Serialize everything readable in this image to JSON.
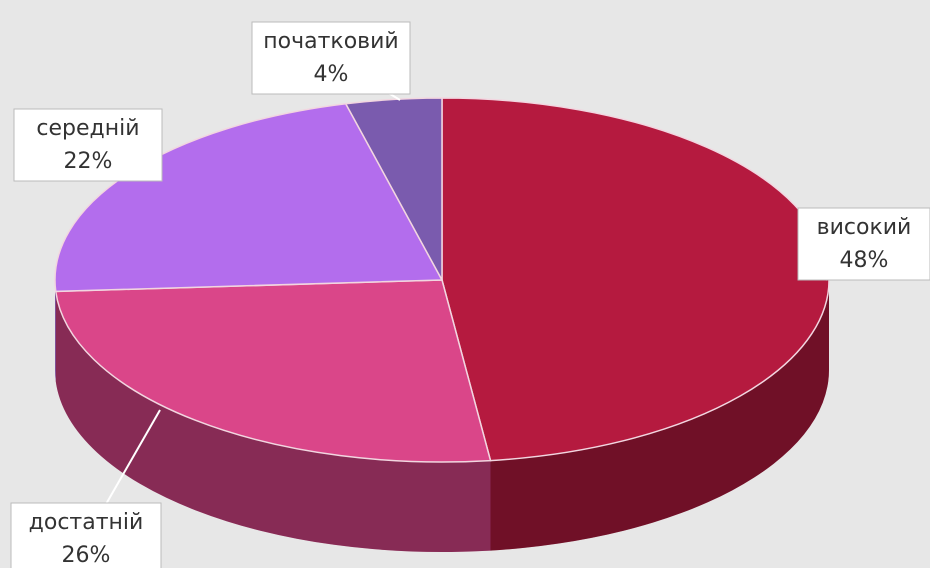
{
  "chart_data": {
    "type": "pie3d",
    "categories": [
      "високий",
      "достатній",
      "середній",
      "початковий"
    ],
    "values": [
      48,
      26,
      22,
      4
    ],
    "value_labels": [
      "48%",
      "26%",
      "22%",
      "4%"
    ],
    "colors": [
      "#b51a3f",
      "#da4689",
      "#b36ded",
      "#7a5bae"
    ]
  }
}
